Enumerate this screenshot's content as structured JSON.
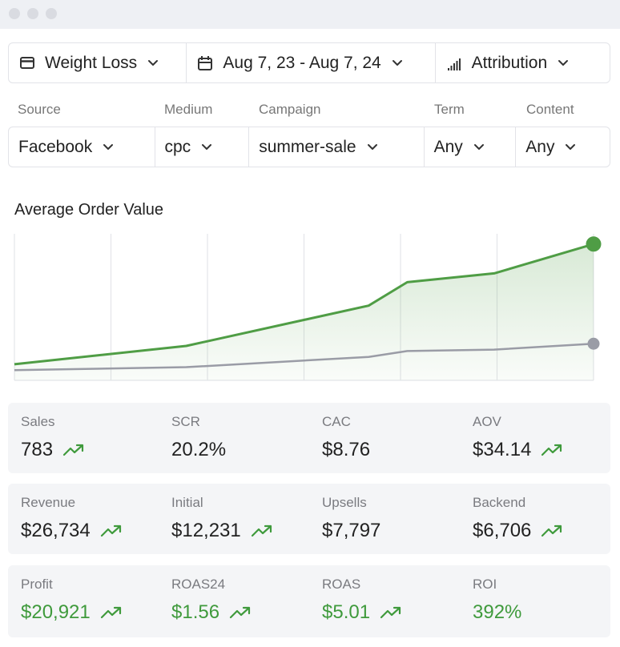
{
  "filters": [
    "Weight Loss",
    "Aug 7, 23 - Aug 7, 24",
    "Attribution"
  ],
  "utm": [
    {
      "label": "Source",
      "value": "Facebook"
    },
    {
      "label": "Medium",
      "value": "cpc"
    },
    {
      "label": "Campaign",
      "value": "summer-sale"
    },
    {
      "label": "Term",
      "value": "Any"
    },
    {
      "label": "Content",
      "value": "Any"
    }
  ],
  "chart_data": {
    "type": "line",
    "title": "Average Order Value",
    "x": [
      0,
      1.78,
      3.67,
      4.07,
      4.97,
      6
    ],
    "xlim": [
      0,
      6
    ],
    "xticks": [
      0,
      1,
      2,
      3,
      4,
      5,
      6
    ],
    "ylim": [
      0,
      100
    ],
    "grid": true,
    "series": [
      {
        "color": "#4f9d45",
        "values": [
          11,
          23.5,
          51,
          67,
          73,
          93
        ]
      },
      {
        "color": "#9a9ca6",
        "values": [
          7,
          9,
          16,
          20,
          21,
          25
        ]
      }
    ]
  },
  "metrics": [
    {
      "highlight": false,
      "items": [
        {
          "label": "Sales",
          "value": "783",
          "trend": true
        },
        {
          "label": "SCR",
          "value": "20.2%",
          "trend": false
        },
        {
          "label": "CAC",
          "value": "$8.76",
          "trend": false
        },
        {
          "label": "AOV",
          "value": "$34.14",
          "trend": true
        }
      ]
    },
    {
      "highlight": false,
      "items": [
        {
          "label": "Revenue",
          "value": "$26,734",
          "trend": true
        },
        {
          "label": "Initial",
          "value": "$12,231",
          "trend": true
        },
        {
          "label": "Upsells",
          "value": "$7,797",
          "trend": false
        },
        {
          "label": "Backend",
          "value": "$6,706",
          "trend": true
        }
      ]
    },
    {
      "highlight": true,
      "items": [
        {
          "label": "Profit",
          "value": "$20,921",
          "trend": true
        },
        {
          "label": "ROAS24",
          "value": "$1.56",
          "trend": true
        },
        {
          "label": "ROAS",
          "value": "$5.01",
          "trend": true
        },
        {
          "label": "ROI",
          "value": "392%",
          "trend": false
        }
      ]
    }
  ]
}
